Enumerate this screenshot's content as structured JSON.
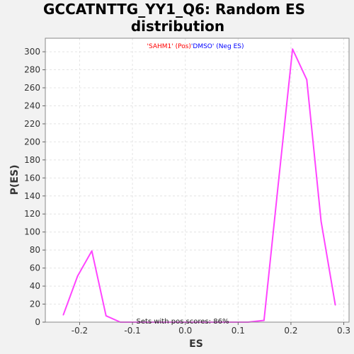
{
  "chart_data": {
    "type": "line",
    "title_line1": "GCCATNTTG_YY1_Q6: Random ES",
    "title_line2": "distribution",
    "xlabel": "ES",
    "ylabel": "P(ES)",
    "xlim": [
      -0.265,
      0.31
    ],
    "ylim": [
      0,
      315
    ],
    "x_ticks": [
      -0.2,
      -0.1,
      0.0,
      0.1,
      0.2,
      0.3
    ],
    "x_tick_labels": [
      "-0.2",
      "-0.1",
      "0.0",
      "0.1",
      "0.2",
      "0.3"
    ],
    "y_ticks": [
      0,
      20,
      40,
      60,
      80,
      100,
      120,
      140,
      160,
      180,
      200,
      220,
      240,
      260,
      280,
      300
    ],
    "y_tick_labels": [
      "0",
      "20",
      "40",
      "60",
      "80",
      "100",
      "120",
      "140",
      "160",
      "180",
      "200",
      "220",
      "240",
      "260",
      "280",
      "300"
    ],
    "grid": true,
    "legend_position": "top-center",
    "legend": {
      "pos_label": "'SAHM1' (Pos)",
      "neg_label": "'DMSO' (Neg ES)",
      "pos_color": "#ff0000",
      "neg_color": "#0000ff"
    },
    "annotation": "Sets with pos scores: 86%",
    "line_color": "#ff44ff",
    "series": [
      {
        "x": [
          -0.231,
          -0.204,
          -0.177,
          -0.15,
          -0.123,
          -0.097,
          -0.07,
          -0.043,
          -0.016,
          0.011,
          0.038,
          0.065,
          0.092,
          0.119,
          0.149,
          0.176,
          0.203,
          0.23,
          0.257,
          0.284
        ],
        "values": [
          8,
          51,
          79,
          7,
          0,
          0,
          0,
          0,
          0,
          0,
          0,
          0,
          0,
          0,
          2,
          153,
          303,
          269,
          112,
          19
        ]
      }
    ]
  }
}
